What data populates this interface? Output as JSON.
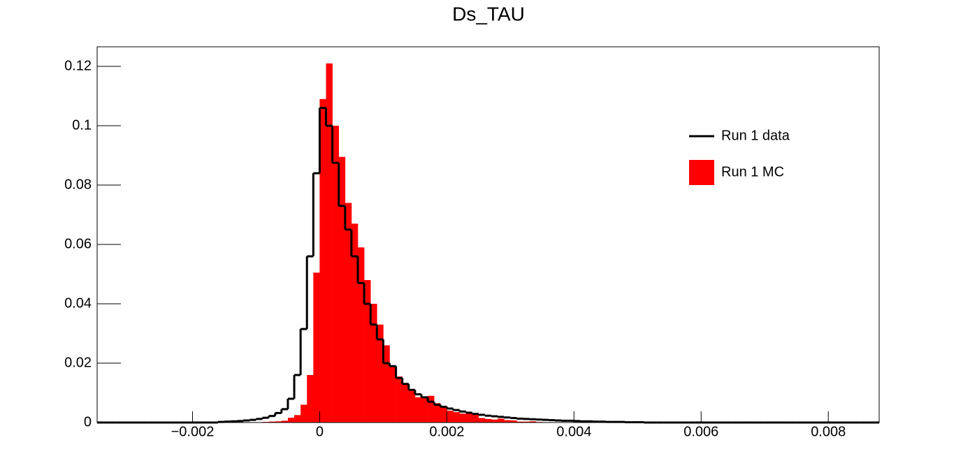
{
  "chart_data": {
    "type": "histogram",
    "title": "Ds_TAU",
    "bins": [
      -0.0035,
      -0.0034,
      -0.0033,
      -0.0032,
      -0.0031,
      -0.003,
      -0.0029,
      -0.0028,
      -0.0027,
      -0.0026,
      -0.0025,
      -0.0024,
      -0.0023,
      -0.0022,
      -0.0021,
      -0.002,
      -0.0019,
      -0.0018,
      -0.0017,
      -0.0016,
      -0.0015,
      -0.0014,
      -0.0013,
      -0.0012,
      -0.0011,
      -0.001,
      -0.0009,
      -0.0008,
      -0.0007,
      -0.0006,
      -0.0005,
      -0.0004,
      -0.0003,
      -0.0002,
      -0.0001,
      0,
      0.0001,
      0.0002,
      0.0003,
      0.0004,
      0.0005,
      0.0006,
      0.0007,
      0.0008,
      0.0009,
      0.001,
      0.0011,
      0.0012,
      0.0013,
      0.0014,
      0.0015,
      0.0016,
      0.0017,
      0.0018,
      0.0019,
      0.002,
      0.0021,
      0.0022,
      0.0023,
      0.0024,
      0.0025,
      0.0026,
      0.0027,
      0.0028,
      0.0029,
      0.003,
      0.0031,
      0.0032,
      0.0033,
      0.0034,
      0.0035,
      0.0036,
      0.0037,
      0.0038,
      0.0039,
      0.004,
      0.0041,
      0.0042,
      0.0043,
      0.0044,
      0.0045,
      0.0046,
      0.0047,
      0.0048,
      0.0049,
      0.005,
      0.0051,
      0.0052,
      0.0053,
      0.0054,
      0.0055,
      0.0056,
      0.0057,
      0.0058,
      0.0059,
      0.006,
      0.0061,
      0.0062,
      0.0063,
      0.0064,
      0.0065,
      0.0066,
      0.0067,
      0.0068,
      0.0069,
      0.007,
      0.0071,
      0.0072,
      0.0073,
      0.0074,
      0.0075,
      0.0076,
      0.0077,
      0.0078,
      0.0079,
      0.008,
      0.0081,
      0.0082,
      0.0083,
      0.0084,
      0.0085,
      0.0086,
      0.0087,
      0.0088
    ],
    "series": [
      {
        "name": "Run 1 data",
        "color": "#000000",
        "style": "step",
        "values": [
          0,
          0,
          0,
          0,
          0,
          0,
          0,
          0,
          0,
          0,
          0,
          0,
          0,
          0,
          0,
          0,
          0,
          0,
          0,
          0.0002,
          0.0003,
          0.0004,
          0.0005,
          0.0007,
          0.0009,
          0.0012,
          0.0016,
          0.0022,
          0.0032,
          0.0045,
          0.008,
          0.016,
          0.0315,
          0.056,
          0.084,
          0.106,
          0.1,
          0.0875,
          0.073,
          0.065,
          0.056,
          0.047,
          0.04,
          0.033,
          0.028,
          0.02,
          0.019,
          0.015,
          0.013,
          0.011,
          0.0095,
          0.0085,
          0.007,
          0.006,
          0.0053,
          0.0047,
          0.0042,
          0.0037,
          0.0033,
          0.0029,
          0.0026,
          0.0023,
          0.0021,
          0.0019,
          0.0017,
          0.0015,
          0.0013,
          0.0012,
          0.0011,
          0.001,
          0.0009,
          0.0008,
          0.0007,
          0.0006,
          0.0006,
          0.0005,
          0.0004,
          0.0004,
          0.0003,
          0.0003,
          0.0002,
          0.0002,
          0.0002,
          0.0001,
          0.0001,
          0.0001,
          0,
          0,
          0,
          0,
          0,
          0,
          0,
          0,
          0,
          0,
          0,
          0,
          0,
          0,
          0,
          0,
          0,
          0,
          0,
          0,
          0,
          0,
          0,
          0,
          0,
          0,
          0,
          0,
          0,
          0,
          0,
          0,
          0,
          0,
          0,
          0,
          0
        ]
      },
      {
        "name": "Run 1 MC",
        "color": "#ff0000",
        "style": "filled",
        "values": [
          0,
          0,
          0,
          0,
          0,
          0,
          0,
          0,
          0,
          0,
          0,
          0,
          0,
          0,
          0,
          0,
          0,
          0,
          0,
          0,
          0,
          0,
          0,
          0,
          0,
          0.0001,
          0.0002,
          0.0003,
          0.0004,
          0.0006,
          0.0016,
          0.0025,
          0.006,
          0.016,
          0.0505,
          0.109,
          0.121,
          0.1,
          0.0895,
          0.074,
          0.067,
          0.059,
          0.048,
          0.04,
          0.033,
          0.026,
          0.019,
          0.0155,
          0.013,
          0.011,
          0.0085,
          0.0085,
          0.009,
          0.0065,
          0.0055,
          0.004,
          0.0035,
          0.003,
          0.003,
          0.0027,
          0.0015,
          0.0012,
          0.001,
          0.0013,
          0.0008,
          0.0007,
          0.0003,
          0.0003,
          0.0004,
          0.0002,
          0.0001,
          0,
          0,
          0,
          0,
          0,
          0,
          0,
          0,
          0,
          0,
          0,
          0,
          0,
          0,
          0,
          0,
          0,
          0,
          0,
          0,
          0,
          0,
          0,
          0,
          0,
          0,
          0,
          0,
          0,
          0,
          0,
          0,
          0,
          0,
          0,
          0,
          0,
          0,
          0,
          0,
          0,
          0,
          0,
          0,
          0,
          0,
          0,
          0,
          0,
          0,
          0,
          0
        ]
      }
    ],
    "xlim": [
      -0.0035,
      0.0088
    ],
    "ylim": [
      0,
      0.1266
    ],
    "xticks": [
      {
        "value": -0.002,
        "label": "−0.002"
      },
      0,
      0.002,
      0.004,
      0.006,
      0.008
    ],
    "yticks": [
      0,
      0.02,
      0.04,
      0.06,
      0.08,
      0.1,
      0.12
    ],
    "legend": "top-right",
    "grid": false
  }
}
